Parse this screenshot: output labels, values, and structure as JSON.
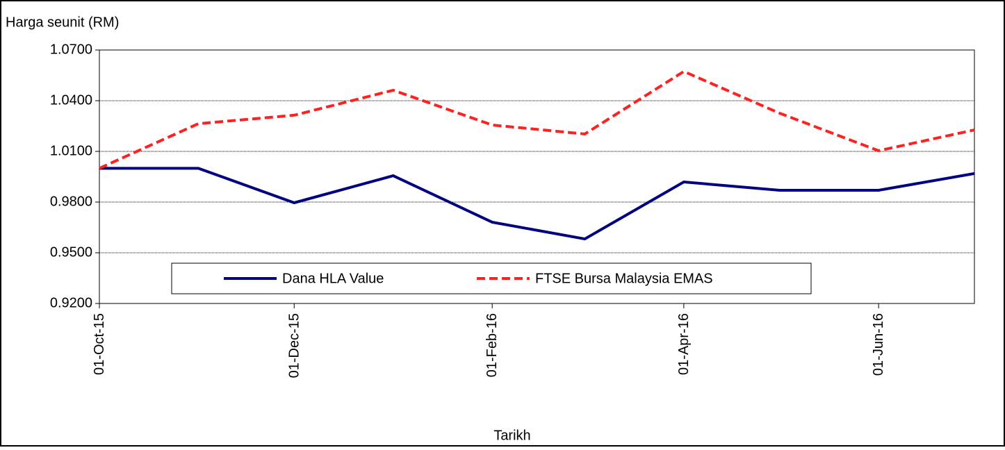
{
  "chart_data": {
    "type": "line",
    "y_axis_label": "Harga seunit (RM)",
    "x_axis_label": "Tarikh",
    "x": [
      "2015-10-01",
      "2015-11-01",
      "2015-12-01",
      "2016-01-01",
      "2016-02-01",
      "2016-03-01",
      "2016-04-01",
      "2016-05-01",
      "2016-06-01",
      "2016-07-01"
    ],
    "xlim": [
      "2015-10-01",
      "2016-07-01"
    ],
    "xticks": [
      {
        "value": "2015-10-01",
        "label": "01-Oct-15"
      },
      {
        "value": "2015-12-01",
        "label": "01-Dec-15"
      },
      {
        "value": "2016-02-01",
        "label": "01-Feb-16"
      },
      {
        "value": "2016-04-01",
        "label": "01-Apr-16"
      },
      {
        "value": "2016-06-01",
        "label": "01-Jun-16"
      }
    ],
    "ylim": [
      0.92,
      1.07
    ],
    "yticks": [
      {
        "value": 0.92,
        "label": "0.9200"
      },
      {
        "value": 0.95,
        "label": "0.9500"
      },
      {
        "value": 0.98,
        "label": "0.9800"
      },
      {
        "value": 1.01,
        "label": "1.0100"
      },
      {
        "value": 1.04,
        "label": "1.0400"
      },
      {
        "value": 1.07,
        "label": "1.0700"
      }
    ],
    "grid": true,
    "legend": "bottom",
    "series": [
      {
        "name": "Dana HLA Value",
        "color": "#000080",
        "dash": "solid",
        "values": [
          1.0,
          1.0,
          0.9796,
          0.9956,
          0.9681,
          0.9582,
          0.9919,
          0.987,
          0.987,
          0.9969
        ]
      },
      {
        "name": "FTSE Bursa Malaysia EMAS",
        "color": "#ff2020",
        "dash": "dashed",
        "values": [
          1.0,
          1.0264,
          1.0314,
          1.0462,
          1.0256,
          1.0203,
          1.0573,
          1.0326,
          1.0104,
          1.0227
        ]
      }
    ]
  }
}
